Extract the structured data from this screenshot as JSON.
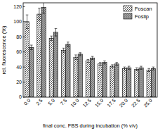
{
  "chart_data": {
    "type": "bar",
    "x_label": "final conc. FBS during incubation (% v/v)",
    "y_label": "rel. fluorescence (%)",
    "categories": [
      "0.0",
      "2.5",
      "5.0",
      "7.5",
      "10.0",
      "12.5",
      "15.0",
      "17.5",
      "20.0",
      "22.5",
      "25.0"
    ],
    "series": [
      {
        "name": "Foscan",
        "color": "#ffffff",
        "values": [
          100,
          110,
          78,
          62,
          53,
          48,
          44,
          41,
          38,
          37,
          36
        ],
        "errors": [
          9,
          8,
          3,
          3,
          3,
          2,
          2,
          2,
          2,
          2,
          2
        ]
      },
      {
        "name": "Foslip",
        "color": "#a8a8a8",
        "values": [
          66,
          119,
          86,
          70,
          57,
          52,
          46,
          44,
          39,
          39,
          38
        ],
        "errors": [
          3,
          8,
          5,
          3,
          2,
          2,
          2,
          2,
          2,
          2,
          2
        ]
      }
    ],
    "ylim": [
      0,
      125
    ],
    "yticks": [
      0,
      20,
      40,
      60,
      80,
      100,
      120
    ],
    "legend": "upper right",
    "grid": false
  }
}
